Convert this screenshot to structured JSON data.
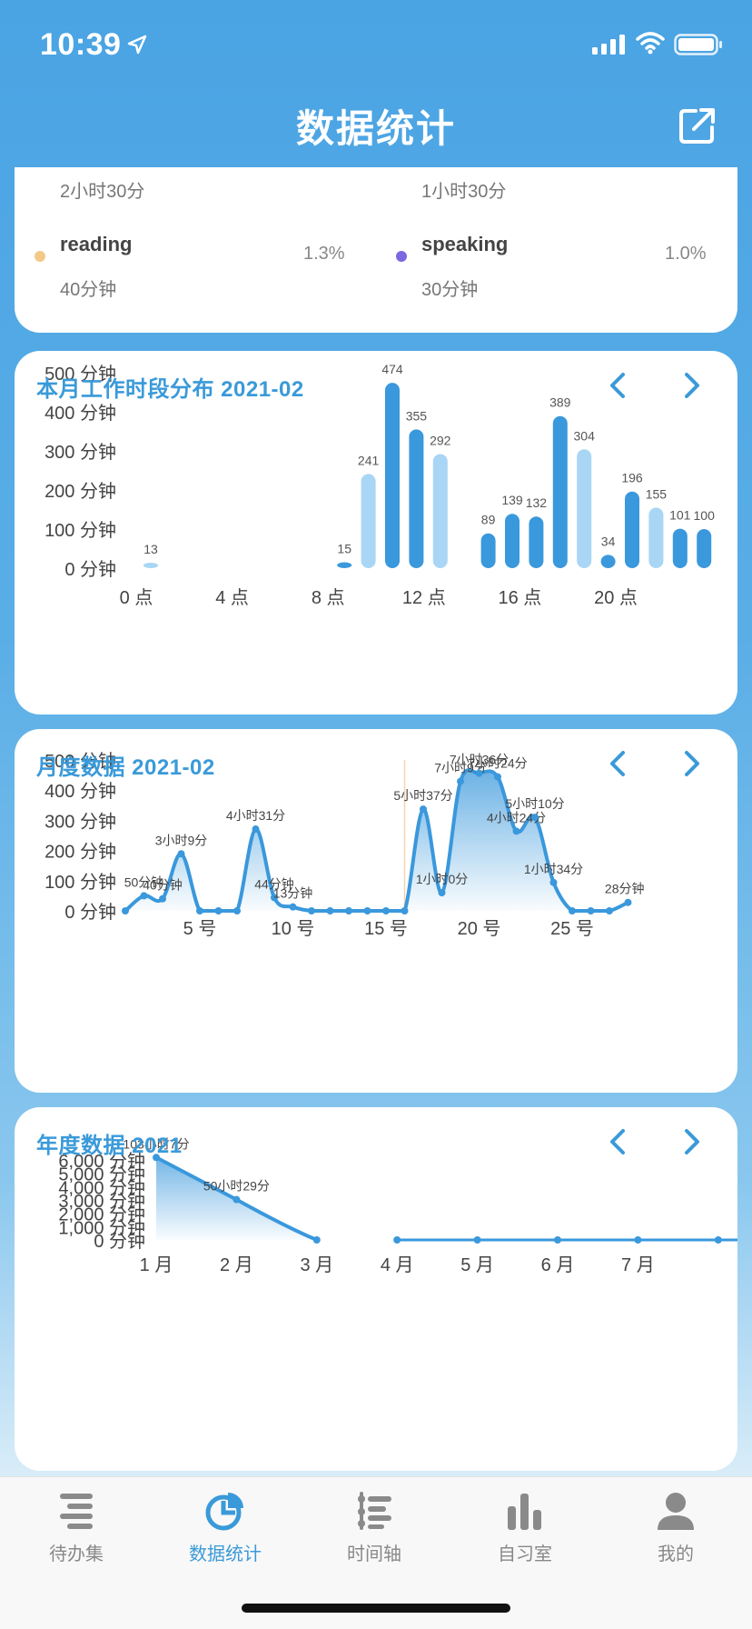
{
  "status": {
    "time": "10:39"
  },
  "nav": {
    "title": "数据统计"
  },
  "summary": {
    "top_left_time": "2小时30分",
    "top_right_time": "1小时30分",
    "items": [
      {
        "name": "reading",
        "duration": "40分钟",
        "percent": "1.3%",
        "color": "#f3c98a"
      },
      {
        "name": "speaking",
        "duration": "30分钟",
        "percent": "1.0%",
        "color": "#7b68e0"
      }
    ]
  },
  "hours_card": {
    "title": "本月工作时段分布  2021-02"
  },
  "month_card": {
    "title": "月度数据 2021-02"
  },
  "year_card": {
    "title": "年度数据  2021"
  },
  "colors": {
    "accent": "#3a9ad9",
    "bar_dark": "#3a98dc",
    "bar_light": "#a9d6f5"
  },
  "chart_data": [
    {
      "type": "bar",
      "title": "本月工作时段分布  2021-02",
      "ylabel": "",
      "y_unit": "分钟",
      "ylim": [
        0,
        500
      ],
      "yticks": [
        "0 分钟",
        "100 分钟",
        "200 分钟",
        "300 分钟",
        "400 分钟",
        "500 分钟"
      ],
      "xtick_labels": [
        "0 点",
        "4 点",
        "8 点",
        "12 点",
        "16 点",
        "20 点"
      ],
      "xtick_hours": [
        0,
        4,
        8,
        12,
        16,
        20
      ],
      "hours": [
        0,
        8,
        9,
        10,
        11,
        12,
        14,
        15,
        16,
        17,
        18,
        19,
        20,
        21,
        22,
        23
      ],
      "values": [
        13,
        15,
        241,
        474,
        355,
        292,
        89,
        139,
        132,
        389,
        304,
        34,
        196,
        155,
        101,
        100
      ],
      "shade": [
        "light",
        "dark",
        "light",
        "dark",
        "dark",
        "light",
        "dark",
        "dark",
        "dark",
        "dark",
        "light",
        "dark",
        "dark",
        "light",
        "dark",
        "dark"
      ]
    },
    {
      "type": "area",
      "title": "月度数据 2021-02",
      "y_unit": "分钟",
      "ylim": [
        0,
        500
      ],
      "yticks": [
        "0 分钟",
        "100 分钟",
        "200 分钟",
        "300 分钟",
        "400 分钟",
        "500 分钟"
      ],
      "xtick_labels": [
        "5 号",
        "10 号",
        "15 号",
        "20 号",
        "25 号"
      ],
      "xtick_days": [
        5,
        10,
        15,
        20,
        25
      ],
      "days": [
        1,
        2,
        3,
        4,
        5,
        6,
        7,
        8,
        9,
        10,
        11,
        12,
        13,
        14,
        15,
        16,
        17,
        18,
        19,
        20,
        21,
        22,
        23,
        24,
        25,
        26,
        27,
        28
      ],
      "values": [
        0,
        50,
        40,
        189,
        0,
        0,
        0,
        271,
        44,
        13,
        0,
        0,
        0,
        0,
        0,
        0,
        337,
        60,
        429,
        456,
        444,
        264,
        310,
        94,
        0,
        0,
        0,
        28
      ],
      "point_labels": {
        "2": "50分钟",
        "3": "40分钟",
        "4": "3小时9分",
        "8": "4小时31分",
        "9": "44分钟",
        "10": "13分钟",
        "17": "5小时37分",
        "18": "1小时0分",
        "19": "7小时9分",
        "20": "7小时36分",
        "21": "7小时24分",
        "22": "4小时24分",
        "23": "5小时10分",
        "24": "1小时34分",
        "28": "28分钟"
      }
    },
    {
      "type": "area",
      "title": "年度数据  2021",
      "y_unit": "分钟",
      "ylim": [
        0,
        6000
      ],
      "yticks": [
        "0 分钟",
        "1,000 分钟",
        "2,000 分钟",
        "3,000 分钟",
        "4,000 分钟",
        "5,000 分钟",
        "6,000 分钟"
      ],
      "xtick_labels": [
        "1 月",
        "2 月",
        "3 月",
        "4 月",
        "5 月",
        "6 月",
        "7 月"
      ],
      "months": [
        1,
        2,
        3,
        4,
        5,
        6,
        7,
        8,
        9
      ],
      "values": [
        6187,
        3029,
        0,
        0,
        0,
        0,
        0,
        0,
        0
      ],
      "point_labels": {
        "1": "103小时7分",
        "2": "50小时29分"
      }
    }
  ],
  "tabs": [
    {
      "label": "待办集",
      "icon": "list-icon"
    },
    {
      "label": "数据统计",
      "icon": "pie-chart-icon"
    },
    {
      "label": "时间轴",
      "icon": "timeline-icon"
    },
    {
      "label": "自习室",
      "icon": "bar-chart-icon"
    },
    {
      "label": "我的",
      "icon": "person-icon"
    }
  ]
}
